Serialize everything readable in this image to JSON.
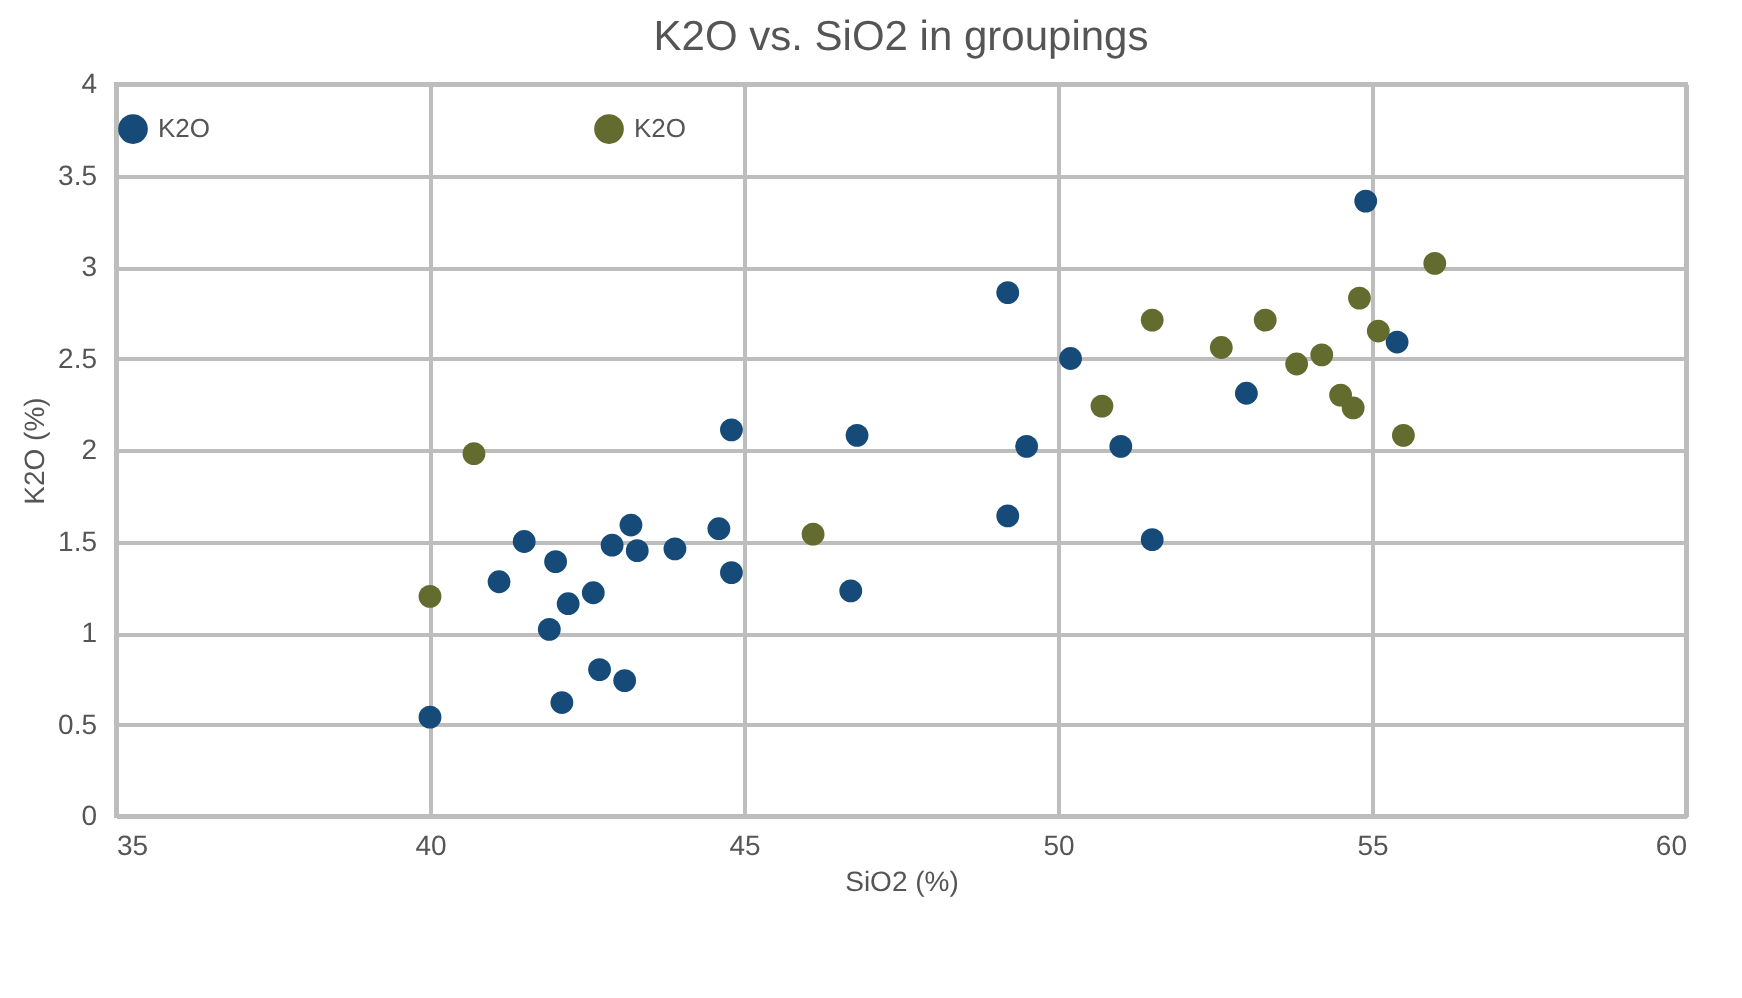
{
  "chart_data": {
    "type": "scatter",
    "title": "K2O vs. SiO2 in groupings",
    "xlabel": "SiO2 (%)",
    "ylabel": "K2O (%)",
    "xlim": [
      35,
      60
    ],
    "xticks": [
      35,
      40,
      45,
      50,
      55,
      60
    ],
    "ylim": [
      0,
      4
    ],
    "yticks": [
      0,
      0.5,
      1,
      1.5,
      2,
      2.5,
      3,
      3.5,
      4
    ],
    "grid": true,
    "legend": "top",
    "marker": "circle",
    "series": [
      {
        "name": "K2O",
        "color": "#154a79",
        "x": [
          44.8,
          46.8,
          43.2,
          41.5,
          42.9,
          43.3,
          43.9,
          44.6,
          42.0,
          44.8,
          41.1,
          46.7,
          42.6,
          42.2,
          41.9,
          42.7,
          43.1,
          42.1,
          40.0,
          54.9,
          49.2,
          55.4,
          50.2,
          53.0,
          49.5,
          51.0,
          49.2,
          51.5
        ],
        "values": [
          2.11,
          2.08,
          1.59,
          1.5,
          1.48,
          1.45,
          1.46,
          1.57,
          1.39,
          1.33,
          1.28,
          1.23,
          1.22,
          1.16,
          1.02,
          0.8,
          0.74,
          0.62,
          0.54,
          3.36,
          2.86,
          2.59,
          2.5,
          2.31,
          2.02,
          2.02,
          1.64,
          1.51
        ]
      },
      {
        "name": "K2O",
        "color": "#636b2f",
        "x": [
          40.7,
          46.1,
          40.0,
          56.0,
          54.8,
          51.5,
          53.3,
          55.1,
          52.6,
          54.2,
          53.8,
          54.5,
          54.7,
          50.7,
          55.5
        ],
        "values": [
          1.98,
          1.54,
          1.2,
          3.02,
          2.83,
          2.71,
          2.71,
          2.65,
          2.56,
          2.52,
          2.47,
          2.3,
          2.23,
          2.24,
          2.08
        ]
      }
    ]
  }
}
